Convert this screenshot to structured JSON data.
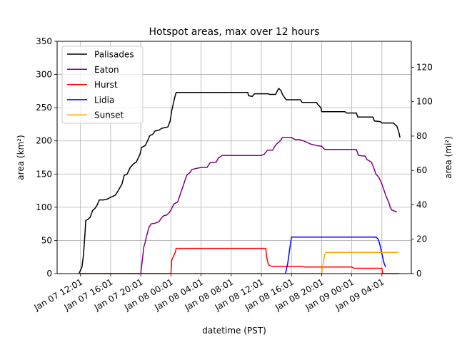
{
  "chart_data": {
    "type": "line",
    "title": "Hotspot areas, max over 12 hours",
    "xlabel": "datetime (PST)",
    "ylabel_left": "area (km²)",
    "ylabel_right": "area (mi²)",
    "ylim_left": [
      0,
      350
    ],
    "ylim_right": [
      0,
      135.1
    ],
    "xlim_hours_from_jan07_1201": [
      -3.1,
      43.9
    ],
    "x_ticks": [
      {
        "label": "Jan 07 12:01",
        "t": 0
      },
      {
        "label": "Jan 07 16:01",
        "t": 4
      },
      {
        "label": "Jan 07 20:01",
        "t": 8
      },
      {
        "label": "Jan 08 00:01",
        "t": 12
      },
      {
        "label": "Jan 08 04:01",
        "t": 16
      },
      {
        "label": "Jan 08 08:01",
        "t": 20
      },
      {
        "label": "Jan 08 12:01",
        "t": 24
      },
      {
        "label": "Jan 08 16:01",
        "t": 28
      },
      {
        "label": "Jan 08 20:01",
        "t": 32
      },
      {
        "label": "Jan 09 00:01",
        "t": 36
      },
      {
        "label": "Jan 09 04:01",
        "t": 40
      }
    ],
    "y_ticks_left": [
      0,
      50,
      100,
      150,
      200,
      250,
      300,
      350
    ],
    "y_ticks_right": [
      0,
      20,
      40,
      60,
      80,
      100,
      120
    ],
    "grid": true,
    "legend_position": "top-left",
    "series": [
      {
        "name": "Palisades",
        "color": "#000000",
        "points": [
          [
            -0.2,
            0
          ],
          [
            0.2,
            10
          ],
          [
            0.4,
            28
          ],
          [
            0.6,
            60
          ],
          [
            0.7,
            80
          ],
          [
            1.0,
            82
          ],
          [
            1.3,
            85
          ],
          [
            1.6,
            95
          ],
          [
            1.9,
            98
          ],
          [
            2.2,
            103
          ],
          [
            2.5,
            111
          ],
          [
            3.0,
            111
          ],
          [
            3.5,
            112
          ],
          [
            4.0,
            115
          ],
          [
            4.6,
            118
          ],
          [
            5.0,
            125
          ],
          [
            5.5,
            135
          ],
          [
            5.8,
            148
          ],
          [
            6.2,
            150
          ],
          [
            6.6,
            160
          ],
          [
            7.0,
            165
          ],
          [
            7.4,
            168
          ],
          [
            7.7,
            175
          ],
          [
            7.9,
            180
          ],
          [
            8.1,
            190
          ],
          [
            8.6,
            193
          ],
          [
            8.9,
            200
          ],
          [
            9.2,
            208
          ],
          [
            9.6,
            210
          ],
          [
            9.9,
            215
          ],
          [
            10.4,
            216
          ],
          [
            10.8,
            219
          ],
          [
            11.2,
            220
          ],
          [
            11.6,
            221
          ],
          [
            11.9,
            230
          ],
          [
            12.1,
            245
          ],
          [
            12.3,
            255
          ],
          [
            12.5,
            265
          ],
          [
            12.7,
            273
          ],
          [
            22.2,
            273
          ],
          [
            22.3,
            268
          ],
          [
            22.8,
            267
          ],
          [
            23.1,
            271
          ],
          [
            24.9,
            271
          ],
          [
            25.1,
            270
          ],
          [
            25.9,
            270
          ],
          [
            26.1,
            275
          ],
          [
            26.3,
            279
          ],
          [
            26.6,
            276
          ],
          [
            26.8,
            270
          ],
          [
            27.1,
            265
          ],
          [
            27.3,
            262
          ],
          [
            29.2,
            262
          ],
          [
            29.4,
            258
          ],
          [
            31.3,
            258
          ],
          [
            31.5,
            255
          ],
          [
            31.9,
            250
          ],
          [
            32.0,
            244
          ],
          [
            35.1,
            244
          ],
          [
            35.3,
            242
          ],
          [
            36.6,
            242
          ],
          [
            36.8,
            236
          ],
          [
            38.8,
            236
          ],
          [
            39.0,
            230
          ],
          [
            39.8,
            229
          ],
          [
            40.0,
            227
          ],
          [
            41.5,
            227
          ],
          [
            41.7,
            225
          ],
          [
            42.0,
            222
          ],
          [
            42.2,
            215
          ],
          [
            42.4,
            205
          ]
        ]
      },
      {
        "name": "Eaton",
        "color": "#800080",
        "points": [
          [
            -0.2,
            0
          ],
          [
            8.0,
            0
          ],
          [
            8.2,
            20
          ],
          [
            8.4,
            40
          ],
          [
            8.6,
            48
          ],
          [
            8.8,
            58
          ],
          [
            9.1,
            70
          ],
          [
            9.4,
            75
          ],
          [
            9.9,
            76
          ],
          [
            10.4,
            78
          ],
          [
            10.7,
            83
          ],
          [
            11.0,
            87
          ],
          [
            11.4,
            88
          ],
          [
            11.8,
            92
          ],
          [
            12.0,
            96
          ],
          [
            12.4,
            105
          ],
          [
            12.9,
            108
          ],
          [
            13.2,
            118
          ],
          [
            13.5,
            128
          ],
          [
            13.8,
            138
          ],
          [
            14.1,
            148
          ],
          [
            14.5,
            152
          ],
          [
            14.8,
            157
          ],
          [
            15.2,
            158
          ],
          [
            15.6,
            159
          ],
          [
            16.0,
            160
          ],
          [
            16.8,
            160
          ],
          [
            17.2,
            167
          ],
          [
            18.0,
            168
          ],
          [
            18.3,
            174
          ],
          [
            18.8,
            178
          ],
          [
            24.0,
            178
          ],
          [
            24.4,
            180
          ],
          [
            24.8,
            186
          ],
          [
            25.5,
            186
          ],
          [
            25.8,
            192
          ],
          [
            26.1,
            196
          ],
          [
            26.5,
            200
          ],
          [
            26.8,
            205
          ],
          [
            28.0,
            205
          ],
          [
            28.5,
            202
          ],
          [
            29.0,
            202
          ],
          [
            29.6,
            200
          ],
          [
            30.2,
            197
          ],
          [
            30.6,
            195
          ],
          [
            31.3,
            193
          ],
          [
            32.0,
            192
          ],
          [
            32.4,
            187
          ],
          [
            33.0,
            187
          ],
          [
            36.6,
            187
          ],
          [
            36.9,
            178
          ],
          [
            37.8,
            177
          ],
          [
            38.0,
            172
          ],
          [
            38.6,
            168
          ],
          [
            38.9,
            160
          ],
          [
            39.2,
            150
          ],
          [
            39.6,
            145
          ],
          [
            40.0,
            135
          ],
          [
            40.3,
            125
          ],
          [
            40.6,
            115
          ],
          [
            40.9,
            108
          ],
          [
            41.1,
            100
          ],
          [
            41.3,
            96
          ],
          [
            41.7,
            94
          ],
          [
            42.0,
            93
          ]
        ]
      },
      {
        "name": "Hurst",
        "color": "#ff0000",
        "points": [
          [
            -0.2,
            0
          ],
          [
            12.0,
            0
          ],
          [
            12.1,
            20
          ],
          [
            12.3,
            25
          ],
          [
            12.6,
            33
          ],
          [
            12.7,
            38
          ],
          [
            24.6,
            38
          ],
          [
            24.7,
            25
          ],
          [
            24.9,
            15
          ],
          [
            25.1,
            12
          ],
          [
            25.4,
            11
          ],
          [
            29.4,
            11
          ],
          [
            29.7,
            10
          ],
          [
            36.0,
            10
          ],
          [
            36.3,
            8
          ],
          [
            40.0,
            8
          ],
          [
            40.1,
            0
          ],
          [
            42.3,
            0
          ]
        ]
      },
      {
        "name": "Lidia",
        "color": "#0000ff",
        "points": [
          [
            27.2,
            0
          ],
          [
            27.5,
            15
          ],
          [
            27.8,
            40
          ],
          [
            28.0,
            55
          ],
          [
            39.2,
            55
          ],
          [
            39.5,
            52
          ],
          [
            39.7,
            45
          ],
          [
            39.9,
            35
          ],
          [
            40.1,
            25
          ],
          [
            40.3,
            15
          ],
          [
            40.5,
            10
          ]
        ]
      },
      {
        "name": "Sunset",
        "color": "#ffa500",
        "points": [
          [
            -0.2,
            0
          ],
          [
            32.0,
            0
          ],
          [
            32.2,
            15
          ],
          [
            32.4,
            28
          ],
          [
            32.6,
            32
          ],
          [
            42.2,
            32
          ]
        ]
      }
    ]
  }
}
